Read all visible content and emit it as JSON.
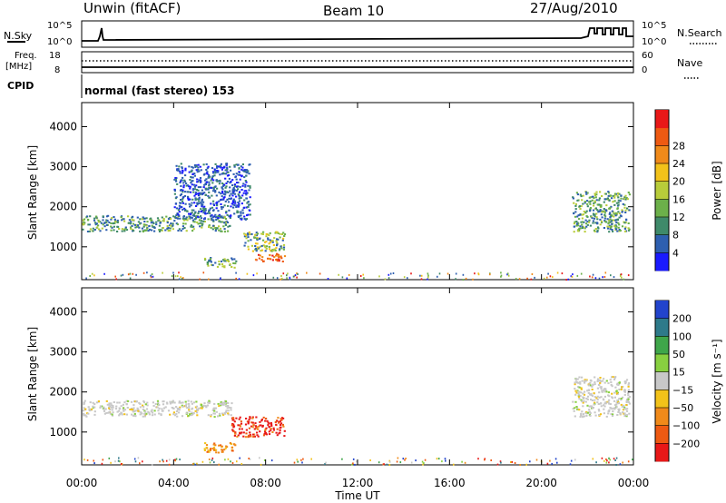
{
  "header": {
    "radar": "Unwin (fitACF)",
    "beam": "Beam 10",
    "date": "27/Aug/2010"
  },
  "strip_labels": {
    "nsky": "N.Sky",
    "nsearch": "N.Search",
    "freq_top": "Freq.",
    "freq_unit": "[MHz]",
    "nave": "Nave",
    "cpid": "CPID",
    "cpid_text": "normal (fast stereo) 153",
    "noise_ticks_left": [
      "10^5",
      "10^0"
    ],
    "noise_ticks_right": [
      "10^5",
      "10^0"
    ],
    "freq_ticks": [
      "18",
      "8"
    ],
    "nave_ticks": [
      "60",
      "0"
    ]
  },
  "chart_data": [
    {
      "type": "heatmap",
      "title": "",
      "xlabel": "",
      "ylabel": "Slant Range [km]",
      "x_range_hours": [
        0,
        24
      ],
      "ylim": [
        180,
        4600
      ],
      "yticks": [
        "1000",
        "2000",
        "3000",
        "4000"
      ],
      "colorbar": {
        "label": "Power [dB]",
        "ticks": [
          "4",
          "8",
          "12",
          "16",
          "20",
          "24",
          "28"
        ],
        "range": [
          0,
          30
        ],
        "colors": [
          "#1a1aff",
          "#2e5fb0",
          "#3f8a6a",
          "#6cb04a",
          "#b8cc3a",
          "#f2c21a",
          "#f08a1a",
          "#ee5a12",
          "#e81818"
        ]
      },
      "regions": [
        {
          "x_range_hours": [
            0.0,
            6.5
          ],
          "range_km": [
            1400,
            1800
          ],
          "level": "low-mid"
        },
        {
          "x_range_hours": [
            4.0,
            7.3
          ],
          "range_km": [
            1700,
            3100
          ],
          "level": "low"
        },
        {
          "x_range_hours": [
            5.3,
            6.7
          ],
          "range_km": [
            500,
            750
          ],
          "level": "low-mid"
        },
        {
          "x_range_hours": [
            7.0,
            8.8
          ],
          "range_km": [
            900,
            1400
          ],
          "level": "mid"
        },
        {
          "x_range_hours": [
            7.5,
            8.8
          ],
          "range_km": [
            650,
            850
          ],
          "level": "high"
        },
        {
          "x_range_hours": [
            21.3,
            23.8
          ],
          "range_km": [
            1400,
            2400
          ],
          "level": "low-mid"
        }
      ]
    },
    {
      "type": "heatmap",
      "title": "",
      "xlabel": "Time UT",
      "ylabel": "Slant Range [km]",
      "x_range_hours": [
        0,
        24
      ],
      "xticks": [
        "00:00",
        "04:00",
        "08:00",
        "12:00",
        "16:00",
        "20:00",
        "00:00"
      ],
      "ylim": [
        180,
        4600
      ],
      "yticks": [
        "1000",
        "2000",
        "3000",
        "4000"
      ],
      "colorbar": {
        "label": "Velocity [m s⁻¹]",
        "ticks": [
          "200",
          "100",
          "50",
          "15",
          "−15",
          "−50",
          "−100",
          "−200"
        ],
        "range": [
          -250,
          250
        ],
        "colors": [
          "#2244cc",
          "#2e7a8a",
          "#3fa64a",
          "#88d040",
          "#c8c8c8",
          "#f2c21a",
          "#f08a1a",
          "#ee5a12",
          "#e81818"
        ]
      },
      "regions": [
        {
          "x_range_hours": [
            0.0,
            6.5
          ],
          "range_km": [
            1400,
            1800
          ],
          "level": "near-zero"
        },
        {
          "x_range_hours": [
            5.3,
            6.7
          ],
          "range_km": [
            500,
            750
          ],
          "level": "negative"
        },
        {
          "x_range_hours": [
            6.5,
            8.8
          ],
          "range_km": [
            900,
            1400
          ],
          "level": "strong-negative"
        },
        {
          "x_range_hours": [
            21.3,
            23.8
          ],
          "range_km": [
            1400,
            2400
          ],
          "level": "near-zero"
        }
      ]
    }
  ]
}
